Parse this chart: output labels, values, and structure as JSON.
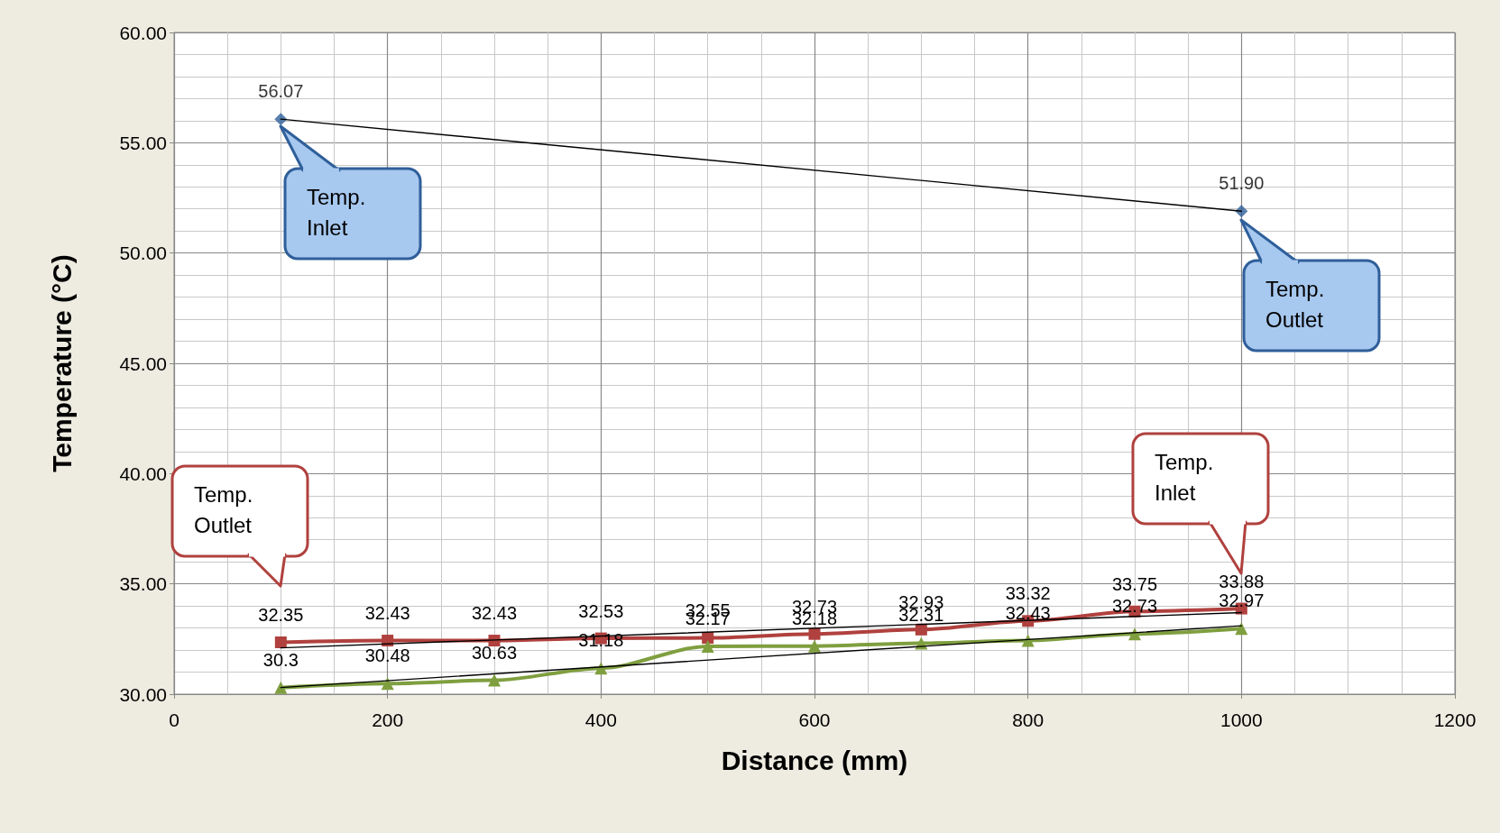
{
  "chart_data": {
    "type": "line",
    "xlabel": "Distance (mm)",
    "ylabel": "Temperature (°C)",
    "x": [
      100,
      200,
      300,
      400,
      500,
      600,
      700,
      800,
      900,
      1000
    ],
    "series": [
      {
        "type": "scatter",
        "color": "#2f5f9a",
        "marker": "diamond",
        "values": [
          56.07,
          null,
          null,
          null,
          null,
          null,
          null,
          null,
          null,
          51.9
        ],
        "value_labels": [
          "56.07",
          null,
          null,
          null,
          null,
          null,
          null,
          null,
          null,
          "51.90"
        ]
      },
      {
        "color": "#b0413e",
        "marker": "square",
        "values": [
          32.35,
          32.43,
          32.43,
          32.53,
          32.55,
          32.73,
          32.93,
          33.32,
          33.75,
          33.88
        ],
        "value_labels": [
          "32.35",
          "32.43",
          "32.43",
          "32.53",
          "32.55",
          "32.73",
          "32.93",
          "33.32",
          "33.75",
          "33.88"
        ]
      },
      {
        "color": "#7f9f3f",
        "marker": "triangle",
        "values": [
          30.3,
          30.48,
          30.63,
          31.18,
          32.17,
          32.18,
          32.31,
          32.43,
          32.73,
          32.97
        ],
        "value_labels": [
          "30.3",
          "30.48",
          "30.63",
          "31.18",
          "32.17",
          "32.18",
          "32.31",
          "32.43",
          "32.73",
          "32.97"
        ]
      },
      {
        "type": "line",
        "color": "#000000",
        "marker": "none",
        "values": [
          56.07,
          null,
          null,
          null,
          null,
          null,
          null,
          null,
          null,
          51.9
        ]
      },
      {
        "type": "line",
        "color": "#000000",
        "marker": "none",
        "values": [
          32.1,
          null,
          null,
          null,
          null,
          null,
          null,
          null,
          null,
          33.7
        ]
      },
      {
        "type": "line",
        "color": "#000000",
        "marker": "none",
        "values": [
          30.3,
          null,
          null,
          null,
          null,
          null,
          null,
          null,
          null,
          33.1
        ]
      }
    ],
    "xlim": [
      0,
      1200
    ],
    "xticks": [
      0,
      200,
      400,
      600,
      800,
      1000,
      1200
    ],
    "ylim": [
      30,
      60
    ],
    "yticks": [
      {
        "value": 30,
        "label": "30.00"
      },
      {
        "value": 35,
        "label": "35.00"
      },
      {
        "value": 40,
        "label": "40.00"
      },
      {
        "value": 45,
        "label": "45.00"
      },
      {
        "value": 50,
        "label": "50.00"
      },
      {
        "value": 55,
        "label": "55.00"
      },
      {
        "value": 60,
        "label": "60.00"
      }
    ],
    "grid": true,
    "annotations": [
      "Temp. Inlet",
      "Temp. Outlet",
      "Temp. Outlet",
      "Temp. Inlet"
    ]
  }
}
